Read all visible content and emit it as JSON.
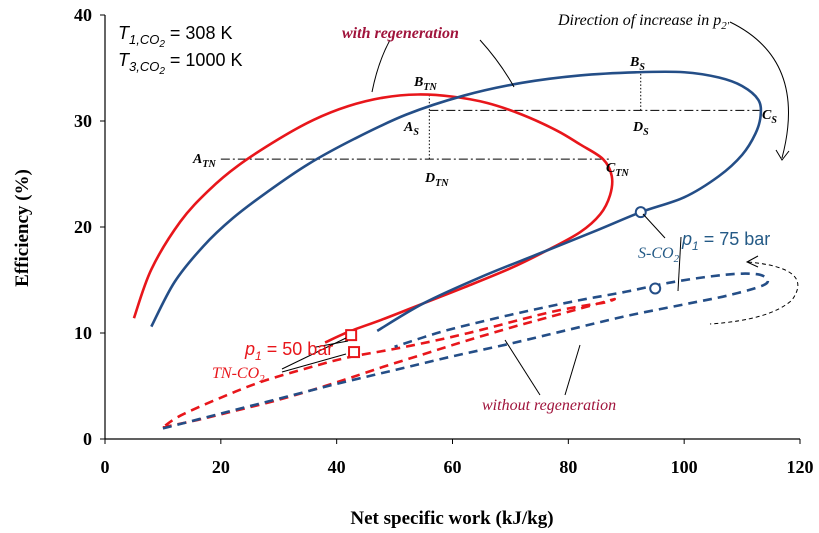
{
  "chart_data": {
    "type": "line",
    "title": "",
    "xlabel": "Net specific work (kJ/kg)",
    "ylabel": "Efficiency (%)",
    "xlim": [
      0,
      120
    ],
    "ylim": [
      0,
      40
    ],
    "xticks": [
      "0",
      "20",
      "40",
      "60",
      "80",
      "100",
      "120"
    ],
    "yticks": [
      "0",
      "10",
      "20",
      "30",
      "40"
    ],
    "grid": false,
    "colors": {
      "tn": "#e8161b",
      "s": "#244e87",
      "annot": "#a0143c",
      "label_blue": "#245a86"
    },
    "series": [
      {
        "name": "",
        "style": "solid",
        "color": "#e8161b",
        "x": [
          5,
          8,
          13,
          18,
          23,
          30,
          36,
          42,
          48,
          54,
          60,
          66,
          72,
          78,
          82,
          86,
          87.5,
          87.2,
          85.5,
          82,
          76,
          70,
          62,
          55,
          48,
          42,
          38
        ],
        "y": [
          11.4,
          16,
          20.5,
          23.5,
          25.8,
          28.3,
          30.1,
          31.4,
          32.2,
          32.5,
          32.3,
          31.7,
          30.6,
          29.1,
          27.8,
          26.4,
          24.8,
          23,
          21.2,
          19.5,
          17.7,
          16.1,
          14.3,
          12.8,
          11.3,
          10.1,
          9.1
        ]
      },
      {
        "name": "",
        "style": "solid",
        "color": "#244e87",
        "x": [
          8,
          12,
          17,
          22,
          28,
          35,
          43,
          52,
          62,
          72,
          82,
          92,
          100,
          106,
          110,
          112.8,
          113.2,
          112.3,
          110,
          106,
          100,
          92.5,
          85,
          75,
          65,
          55,
          47
        ],
        "y": [
          10.6,
          14.8,
          18.2,
          20.8,
          23.3,
          25.9,
          28.3,
          30.6,
          32.4,
          33.6,
          34.3,
          34.6,
          34.6,
          34.1,
          33.3,
          32,
          30.5,
          28.8,
          26.8,
          24.8,
          22.8,
          21.4,
          19.7,
          17.5,
          15.3,
          12.8,
          10.2
        ]
      },
      {
        "name": "",
        "style": "dashed",
        "color": "#e8161b",
        "x": [
          10,
          16,
          22,
          30,
          38,
          42.5,
          48,
          55,
          62,
          70,
          76,
          82,
          86,
          88,
          86.5,
          83,
          78,
          72,
          65,
          58,
          50,
          42,
          35,
          27,
          20,
          13,
          10
        ],
        "y": [
          1.1,
          1.8,
          2.6,
          3.7,
          5,
          5.8,
          6.8,
          8,
          9.2,
          10.5,
          11.4,
          12.3,
          12.9,
          13.2,
          12.9,
          12.6,
          12.1,
          11.3,
          10.3,
          9.4,
          8.5,
          7.7,
          6.7,
          5.4,
          3.9,
          2.2,
          1.1
        ]
      },
      {
        "name": "",
        "style": "dashed",
        "color": "#244e87",
        "x": [
          10,
          20,
          30,
          40,
          50,
          60,
          70,
          80,
          90,
          100,
          108,
          114,
          113.6,
          110,
          104,
          97,
          90,
          82,
          74,
          66,
          58,
          50
        ],
        "y": [
          1,
          2.4,
          3.8,
          5.2,
          6.5,
          7.8,
          9,
          10.3,
          11.6,
          12.7,
          13.6,
          14.6,
          15.4,
          15.6,
          15.3,
          14.7,
          13.9,
          13.1,
          12.2,
          11.2,
          10.1,
          8.7
        ]
      }
    ],
    "constant_lines": [
      {
        "x": [
          20,
          87
        ],
        "y": [
          26.4,
          26.4
        ]
      },
      {
        "x": [
          56,
          113
        ],
        "y": [
          31,
          31
        ]
      }
    ],
    "vertical_markers": [
      {
        "x": 56,
        "y": [
          31,
          32.4
        ]
      },
      {
        "x": 56,
        "y": [
          26.4,
          31
        ]
      },
      {
        "x": 92.5,
        "y": [
          31,
          34.6
        ]
      }
    ],
    "markers": [
      {
        "shape": "square",
        "color": "#e8161b",
        "x": 42.5,
        "y": 9.8
      },
      {
        "shape": "square",
        "color": "#e8161b",
        "x": 43,
        "y": 8.2
      },
      {
        "shape": "circle",
        "color": "#244e87",
        "x": 92.5,
        "y": 21.4
      },
      {
        "shape": "circle",
        "color": "#244e87",
        "x": 95,
        "y": 14.2
      }
    ],
    "annotations": {
      "t1_label": "T",
      "t1_sub": "1,CO",
      "t1_subsub": "2",
      "t1_value": " = 308 K",
      "t3_label": "T",
      "t3_sub": "3,CO",
      "t3_subsub": "2",
      "t3_value": " = 1000 K",
      "with_regeneration": "with regeneration",
      "without_regeneration": "without regeneration",
      "direction": "Direction of increase in p",
      "direction_sub": "2'",
      "p1_50_label": "p",
      "p1_50_sub": "1",
      "p1_50_value": " = 50 bar",
      "p1_75_label": "p",
      "p1_75_sub": "1",
      "p1_75_value": " = 75 bar",
      "tn_label": "TN-CO",
      "tn_sub": "2",
      "s_label": "S-CO",
      "s_sub": "2",
      "pts": {
        "A_TN": [
          "A",
          "TN"
        ],
        "B_TN": [
          "B",
          "TN"
        ],
        "C_TN": [
          "C",
          "TN"
        ],
        "D_TN": [
          "D",
          "TN"
        ],
        "A_S": [
          "A",
          "S"
        ],
        "B_S": [
          "B",
          "S"
        ],
        "C_S": [
          "C",
          "S"
        ],
        "D_S": [
          "D",
          "S"
        ]
      }
    }
  }
}
